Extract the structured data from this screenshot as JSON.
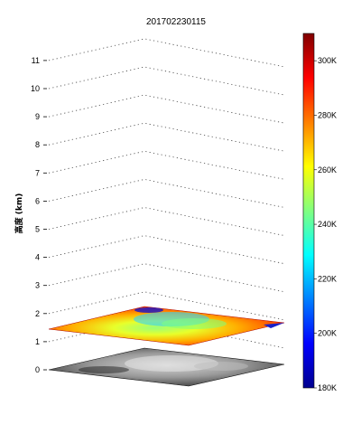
{
  "chart_data": {
    "type": "3d-layered-surface",
    "title": "201702230115",
    "zlabel": "高度 (km)",
    "z_ticks": [
      "0",
      "1",
      "2",
      "3",
      "4",
      "5",
      "6",
      "7",
      "8",
      "9",
      "10",
      "11"
    ],
    "zlim": [
      0,
      11
    ],
    "layers": [
      {
        "name": "",
        "height_km": 0,
        "colormap": "gray"
      },
      {
        "name": "",
        "height_km": 1.5,
        "colormap": "jet"
      }
    ],
    "colorbar": {
      "colormap": "jet",
      "range": [
        180,
        310
      ],
      "ticks": [
        "180K",
        "200K",
        "220K",
        "240K",
        "260K",
        "280K",
        "300K"
      ],
      "tick_values": [
        180,
        200,
        220,
        240,
        260,
        280,
        300
      ]
    },
    "grid": true
  }
}
